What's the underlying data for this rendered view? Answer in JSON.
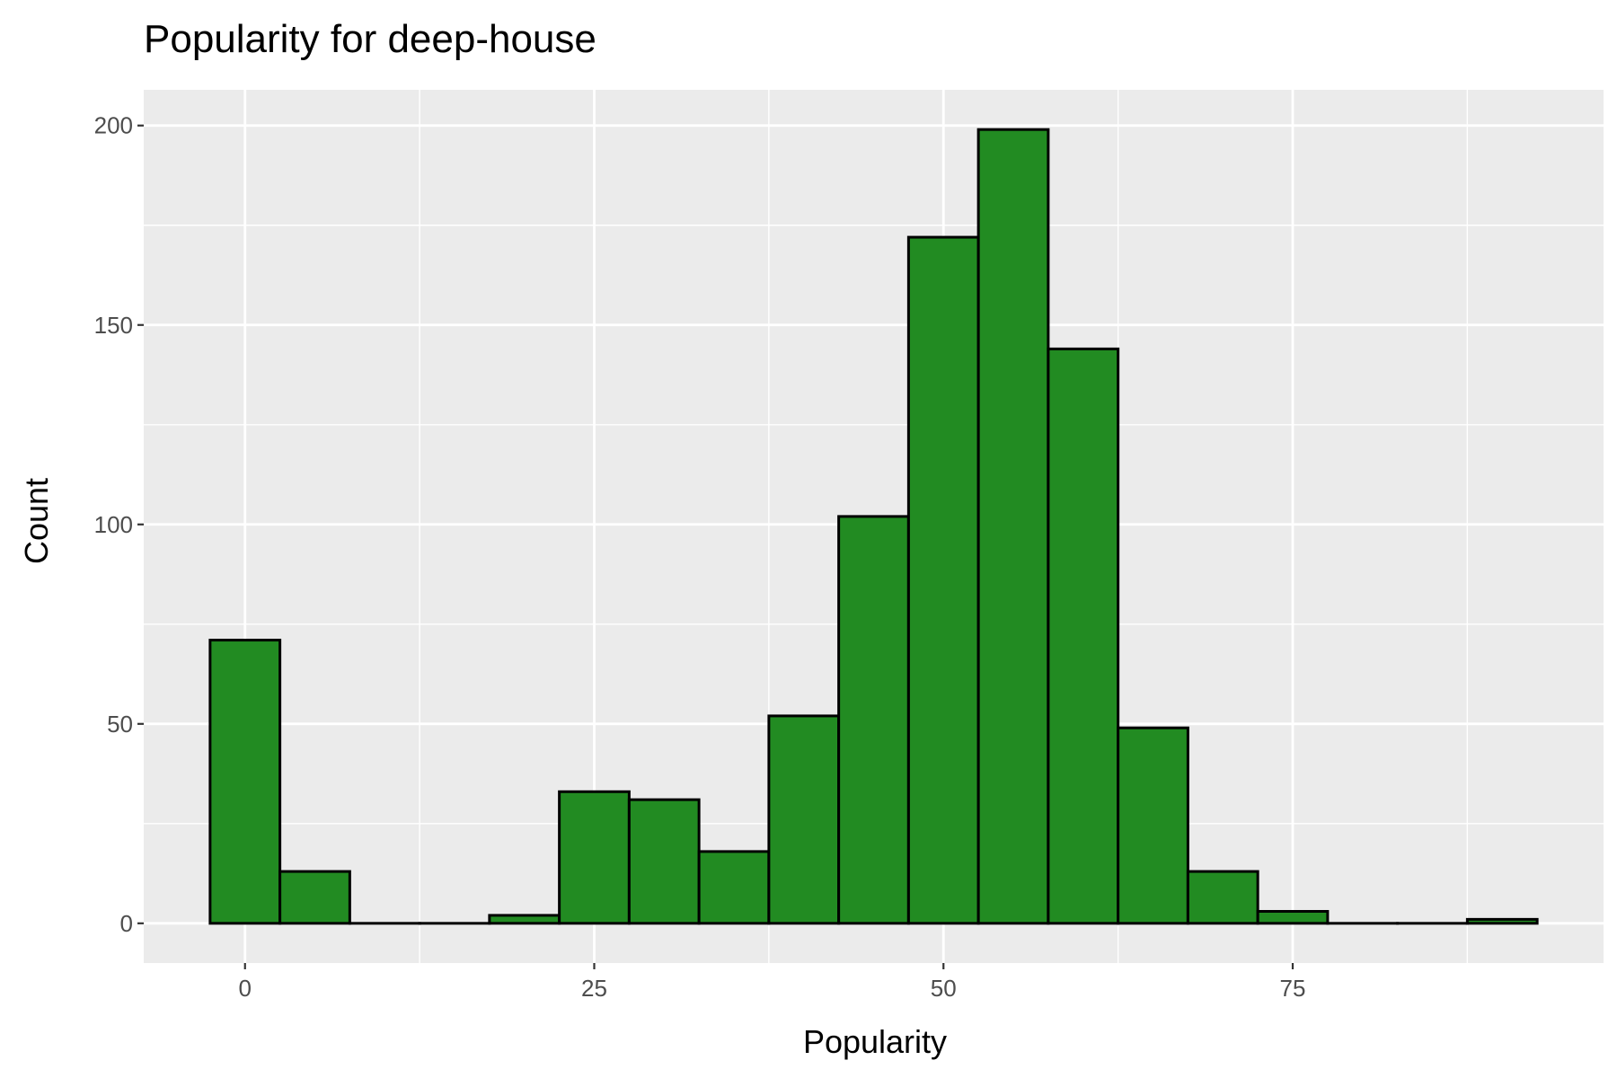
{
  "chart_data": {
    "type": "bar",
    "title": "Popularity for deep-house",
    "xlabel": "Popularity",
    "ylabel": "Count",
    "bin_width": 5,
    "bins": [
      {
        "x": 0,
        "count": 71
      },
      {
        "x": 5,
        "count": 13
      },
      {
        "x": 10,
        "count": 0
      },
      {
        "x": 15,
        "count": 0
      },
      {
        "x": 20,
        "count": 2
      },
      {
        "x": 25,
        "count": 33
      },
      {
        "x": 30,
        "count": 31
      },
      {
        "x": 35,
        "count": 18
      },
      {
        "x": 40,
        "count": 52
      },
      {
        "x": 45,
        "count": 102
      },
      {
        "x": 50,
        "count": 172
      },
      {
        "x": 55,
        "count": 199
      },
      {
        "x": 60,
        "count": 144
      },
      {
        "x": 65,
        "count": 49
      },
      {
        "x": 70,
        "count": 13
      },
      {
        "x": 75,
        "count": 3
      },
      {
        "x": 80,
        "count": 0
      },
      {
        "x": 85,
        "count": 0
      },
      {
        "x": 90,
        "count": 1
      }
    ],
    "xlim": [
      -7.25,
      97.25
    ],
    "ylim": [
      -9.95,
      208.95
    ],
    "x_ticks": [
      0,
      25,
      50,
      75
    ],
    "x_minor_ticks": [
      12.5,
      37.5,
      62.5,
      87.5
    ],
    "y_ticks": [
      0,
      50,
      100,
      150,
      200
    ],
    "y_minor_ticks": [
      25,
      75,
      125,
      175
    ],
    "grid": true,
    "legend": "none",
    "colors": {
      "bar_fill": "#228B22",
      "bar_outline": "#000000",
      "panel_background": "#EBEBEB",
      "grid": "#FFFFFF"
    }
  }
}
